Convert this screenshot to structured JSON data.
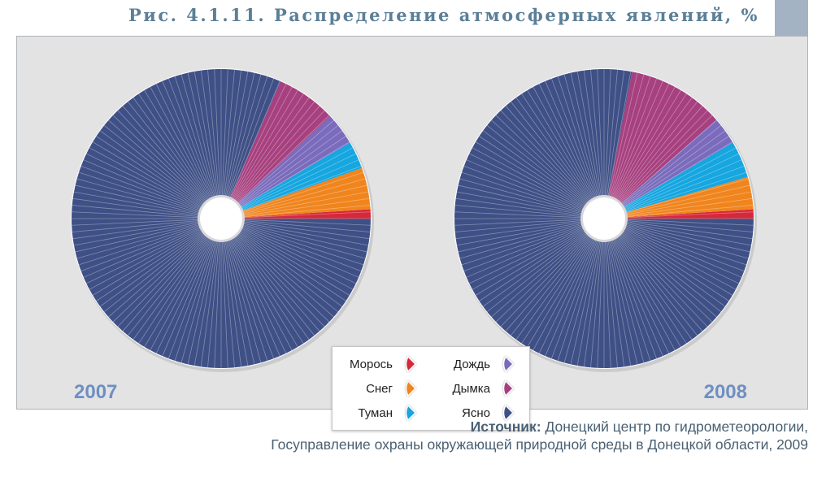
{
  "figure": {
    "title": "Рис. 4.1.11. Распределение атмосферных явлений, %",
    "source_label": "Источник:",
    "source_line1": "Донецкий центр по гидрометеорологии,",
    "source_line2": "Госуправление охраны окружающей природной среды в Донецкой области, 2009"
  },
  "chart_data": [
    {
      "type": "pie",
      "year_label": "2007",
      "categories": [
        "Морось",
        "Снег",
        "Туман",
        "Дождь",
        "Дымка",
        "Ясно"
      ],
      "values": [
        1.0,
        4.5,
        3.0,
        3.5,
        6.5,
        81.5
      ],
      "colors": [
        "#d7283a",
        "#f0851e",
        "#16a6e0",
        "#7a6bbc",
        "#a7407f",
        "#3f5086"
      ]
    },
    {
      "type": "pie",
      "year_label": "2008",
      "categories": [
        "Морось",
        "Снег",
        "Туман",
        "Дождь",
        "Дымка",
        "Ясно"
      ],
      "values": [
        1.0,
        3.5,
        4.0,
        3.0,
        10.5,
        78.0
      ],
      "colors": [
        "#d7283a",
        "#f0851e",
        "#16a6e0",
        "#7a6bbc",
        "#a7407f",
        "#3f5086"
      ]
    }
  ],
  "legend": {
    "items": [
      {
        "label": "Морось",
        "color": "#d7283a"
      },
      {
        "label": "Снег",
        "color": "#f0851e"
      },
      {
        "label": "Туман",
        "color": "#16a6e0"
      },
      {
        "label": "Дождь",
        "color": "#7a6bbc"
      },
      {
        "label": "Дымка",
        "color": "#a7407f"
      },
      {
        "label": "Ясно",
        "color": "#3f5086"
      }
    ]
  },
  "colors": {
    "title": "#5b7f97",
    "panel": "#e3e3e4",
    "year_label": "#6f8fc1"
  }
}
